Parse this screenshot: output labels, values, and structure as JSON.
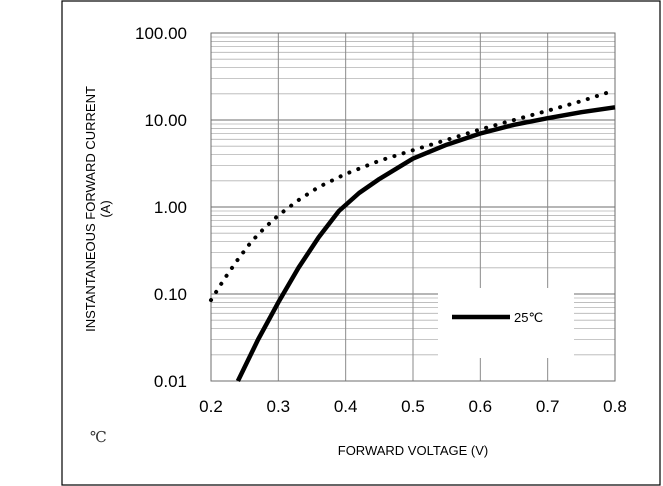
{
  "stray_glyph": "℃",
  "chart_data": {
    "type": "line",
    "title": "",
    "xlabel": "FORWARD VOLTAGE (V)",
    "ylabel_lines": [
      "INSTANTANEOUS FORWARD CURRENT",
      "(A)"
    ],
    "xlim": [
      0.2,
      0.8
    ],
    "ylim": [
      0.01,
      100
    ],
    "yscale": "log",
    "x_ticks": [
      "0.2",
      "0.3",
      "0.4",
      "0.5",
      "0.6",
      "0.7",
      "0.8"
    ],
    "y_ticks": [
      "0.01",
      "0.10",
      "1.00",
      "10.00",
      "100.00"
    ],
    "grid": true,
    "legend": {
      "placement": "lower-right",
      "entries": [
        "25℃"
      ]
    },
    "series": [
      {
        "name": "25℃",
        "style": "solid",
        "color": "#000000",
        "x": [
          0.24,
          0.27,
          0.3,
          0.33,
          0.36,
          0.39,
          0.42,
          0.45,
          0.5,
          0.55,
          0.6,
          0.65,
          0.7,
          0.75,
          0.8
        ],
        "y": [
          0.01,
          0.03,
          0.08,
          0.2,
          0.45,
          0.9,
          1.45,
          2.1,
          3.6,
          5.2,
          7.0,
          8.8,
          10.5,
          12.3,
          14.0
        ]
      },
      {
        "style": "dotted",
        "color": "#000000",
        "x": [
          0.2,
          0.22,
          0.24,
          0.26,
          0.28,
          0.3,
          0.33,
          0.36,
          0.4,
          0.45,
          0.5,
          0.55,
          0.6,
          0.65,
          0.7,
          0.75,
          0.8
        ],
        "y": [
          0.085,
          0.15,
          0.25,
          0.4,
          0.58,
          0.8,
          1.2,
          1.7,
          2.4,
          3.4,
          4.5,
          5.9,
          7.8,
          10.0,
          12.8,
          16.5,
          22.0
        ]
      }
    ]
  }
}
